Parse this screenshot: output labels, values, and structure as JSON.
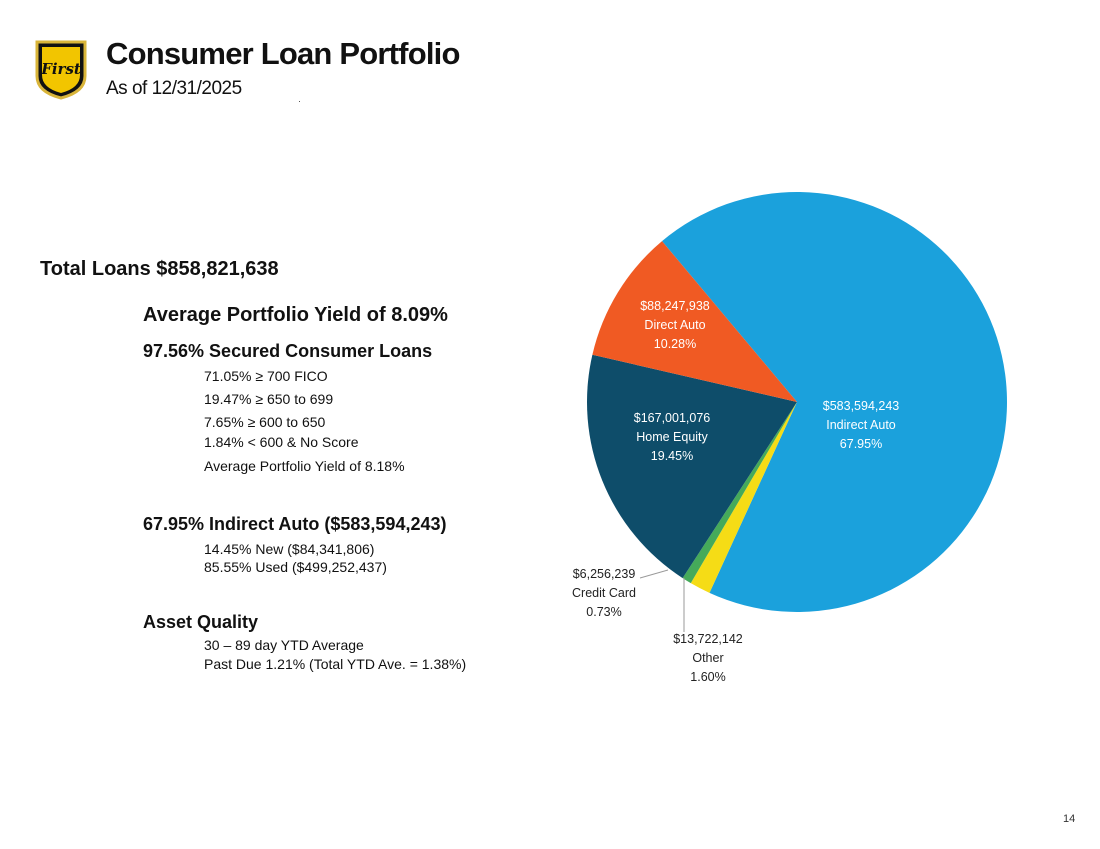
{
  "header": {
    "title": "Consumer Loan Portfolio",
    "subtitle": "As of 12/31/2025",
    "logo_text": "First"
  },
  "summary": {
    "total": "Total Loans $858,821,638",
    "average_yield": "Average Portfolio Yield of 8.09%",
    "secured": {
      "heading": "97.56% Secured Consumer Loans",
      "lines": [
        "71.05% ≥ 700 FICO",
        "19.47% ≥ 650 to 699",
        "7.65% ≥ 600 to 650",
        "1.84% < 600 & No Score",
        "Average Portfolio Yield of 8.18%"
      ]
    },
    "indirect": {
      "heading": "67.95% Indirect Auto ($583,594,243)",
      "lines": [
        "14.45% New ($84,341,806)",
        "85.55% Used ($499,252,437)"
      ]
    },
    "quality": {
      "heading": "Asset Quality",
      "lines": [
        "30 – 89 day YTD Average",
        "Past Due 1.21% (Total YTD Ave. = 1.38%)"
      ]
    }
  },
  "chart_data": {
    "type": "pie",
    "title": "",
    "slices": [
      {
        "label": "Indirect Auto",
        "value": 583594243,
        "amount": "$583,594,243",
        "percent": "67.95%",
        "color": "#1ba1dc"
      },
      {
        "label": "Other",
        "value": 13722142,
        "amount": "$13,722,142",
        "percent": "1.60%",
        "color": "#f5dc16"
      },
      {
        "label": "Credit Card",
        "value": 6256239,
        "amount": "$6,256,239",
        "percent": "0.73%",
        "color": "#45aa5a"
      },
      {
        "label": "Home Equity",
        "value": 167001076,
        "amount": "$167,001,076",
        "percent": "19.45%",
        "color": "#0e4d6a"
      },
      {
        "label": "Direct Auto",
        "value": 88247938,
        "amount": "$88,247,938",
        "percent": "10.28%",
        "color": "#f05a23"
      }
    ]
  },
  "footer": {
    "page_number": "14"
  }
}
